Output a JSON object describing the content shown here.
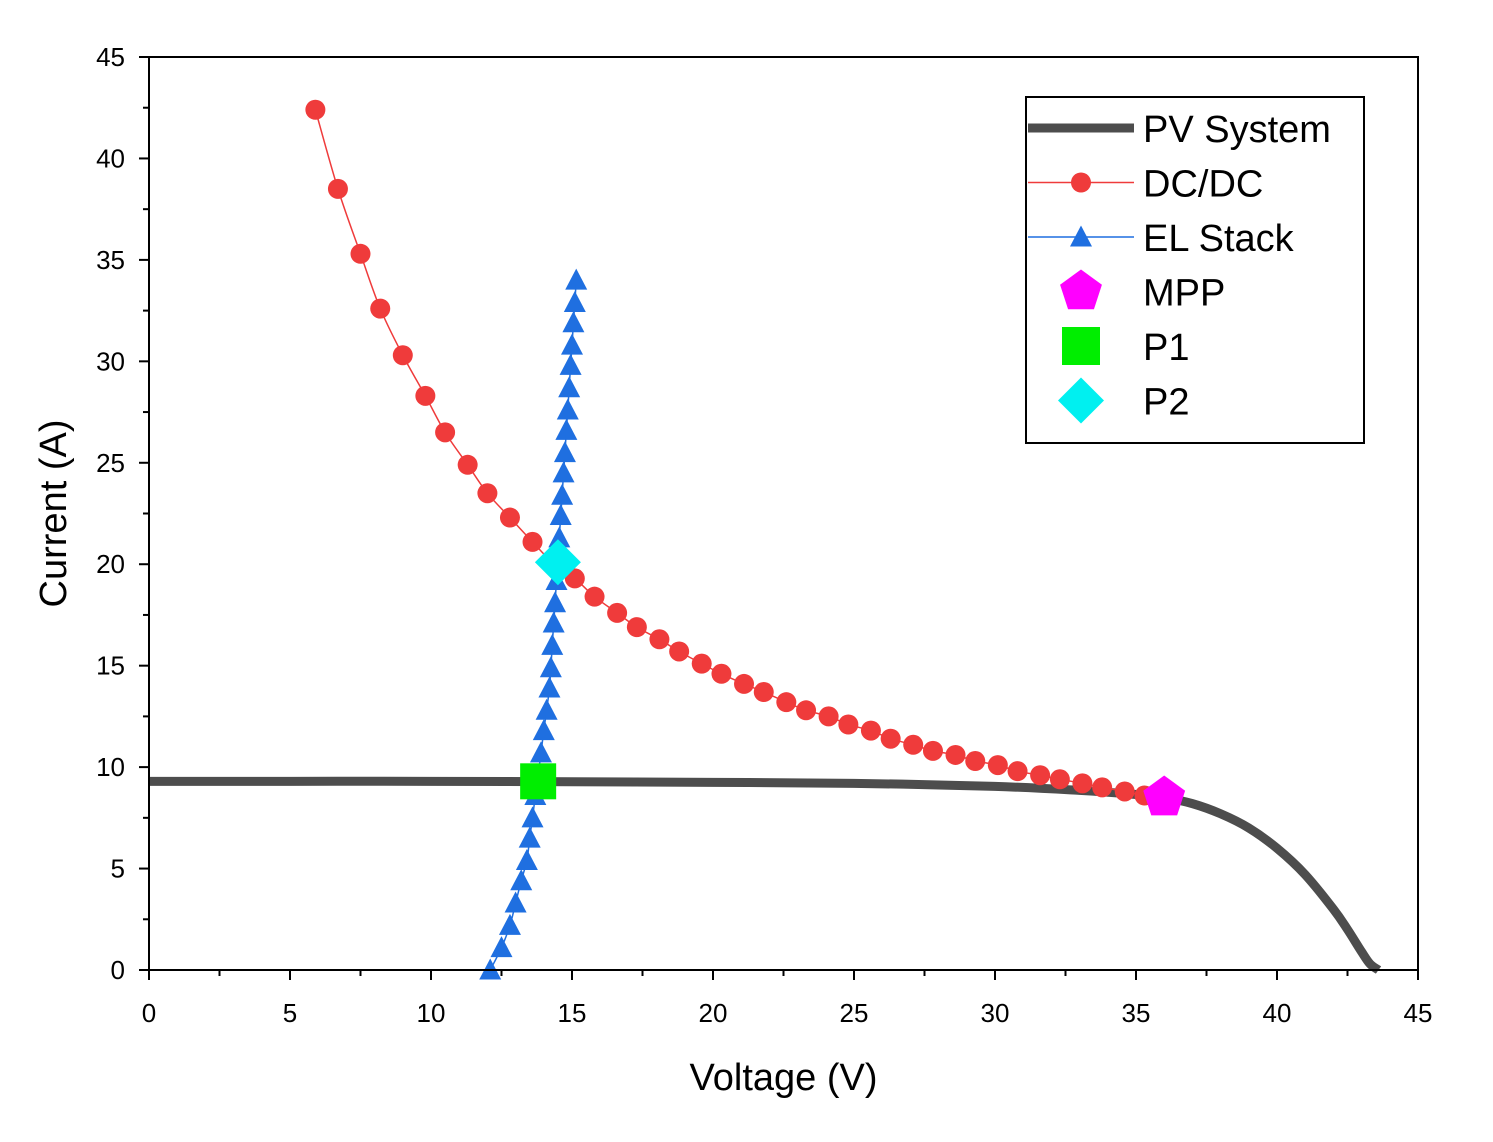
{
  "chart_data": {
    "type": "line",
    "xlabel": "Voltage (V)",
    "ylabel": "Current (A)",
    "xlim": [
      0,
      45
    ],
    "ylim": [
      0,
      45
    ],
    "x_ticks": [
      "0",
      "5",
      "10",
      "15",
      "20",
      "25",
      "30",
      "35",
      "40",
      "45"
    ],
    "y_ticks": [
      "0",
      "5",
      "10",
      "15",
      "20",
      "25",
      "30",
      "35",
      "40",
      "45"
    ],
    "grid": false,
    "legend_position": "top-right",
    "series": [
      {
        "name": "PV System",
        "marker": "none",
        "color": "#4d4d4d",
        "x": [
          0,
          5,
          10,
          15,
          20,
          25,
          30,
          33,
          35,
          36,
          37,
          38,
          39,
          40,
          41,
          42,
          42.5,
          43,
          43.3,
          43.6
        ],
        "y": [
          9.3,
          9.3,
          9.3,
          9.28,
          9.25,
          9.2,
          9.05,
          8.85,
          8.65,
          8.5,
          8.2,
          7.7,
          7.0,
          6.0,
          4.7,
          3.0,
          2.0,
          0.9,
          0.3,
          0
        ]
      },
      {
        "name": "DC/DC",
        "marker": "circle",
        "color": "#ef3b3b",
        "x": [
          5.9,
          6.7,
          7.5,
          8.2,
          9.0,
          9.8,
          10.5,
          11.3,
          12.0,
          12.8,
          13.6,
          14.3,
          15.1,
          15.8,
          16.6,
          17.3,
          18.1,
          18.8,
          19.6,
          20.3,
          21.1,
          21.8,
          22.6,
          23.3,
          24.1,
          24.8,
          25.6,
          26.3,
          27.1,
          27.8,
          28.6,
          29.3,
          30.1,
          30.8,
          31.6,
          32.3,
          33.1,
          33.8,
          34.6,
          35.3
        ],
        "y": [
          42.4,
          38.5,
          35.3,
          32.6,
          30.3,
          28.3,
          26.5,
          24.9,
          23.5,
          22.3,
          21.1,
          20.1,
          19.3,
          18.4,
          17.6,
          16.9,
          16.3,
          15.7,
          15.1,
          14.6,
          14.1,
          13.7,
          13.2,
          12.8,
          12.5,
          12.1,
          11.8,
          11.4,
          11.1,
          10.8,
          10.6,
          10.3,
          10.1,
          9.8,
          9.6,
          9.4,
          9.2,
          9.0,
          8.8,
          8.6
        ]
      },
      {
        "name": "EL Stack",
        "marker": "triangle",
        "color": "#1f6fe0",
        "x": [
          12.1,
          12.5,
          12.8,
          13.0,
          13.2,
          13.4,
          13.5,
          13.6,
          13.7,
          13.8,
          13.9,
          14.0,
          14.1,
          14.2,
          14.25,
          14.3,
          14.35,
          14.4,
          14.45,
          14.5,
          14.55,
          14.6,
          14.65,
          14.7,
          14.75,
          14.8,
          14.85,
          14.9,
          14.95,
          15.0,
          15.05,
          15.1,
          15.15
        ],
        "y": [
          0,
          1.1,
          2.2,
          3.3,
          4.4,
          5.4,
          6.5,
          7.5,
          8.6,
          9.6,
          10.7,
          11.8,
          12.8,
          13.9,
          14.9,
          16.0,
          17.1,
          18.1,
          19.2,
          20.2,
          21.3,
          22.4,
          23.4,
          24.5,
          25.5,
          26.6,
          27.6,
          28.7,
          29.8,
          30.8,
          31.9,
          32.9,
          34.0
        ]
      },
      {
        "name": "MPP",
        "marker": "pentagon",
        "color": "#ff00ff",
        "x": [
          36.0
        ],
        "y": [
          8.5
        ]
      },
      {
        "name": "P1",
        "marker": "square",
        "color": "#00ee00",
        "x": [
          13.8
        ],
        "y": [
          9.3
        ]
      },
      {
        "name": "P2",
        "marker": "diamond",
        "color": "#00f0f0",
        "x": [
          14.5
        ],
        "y": [
          20.1
        ]
      }
    ]
  }
}
